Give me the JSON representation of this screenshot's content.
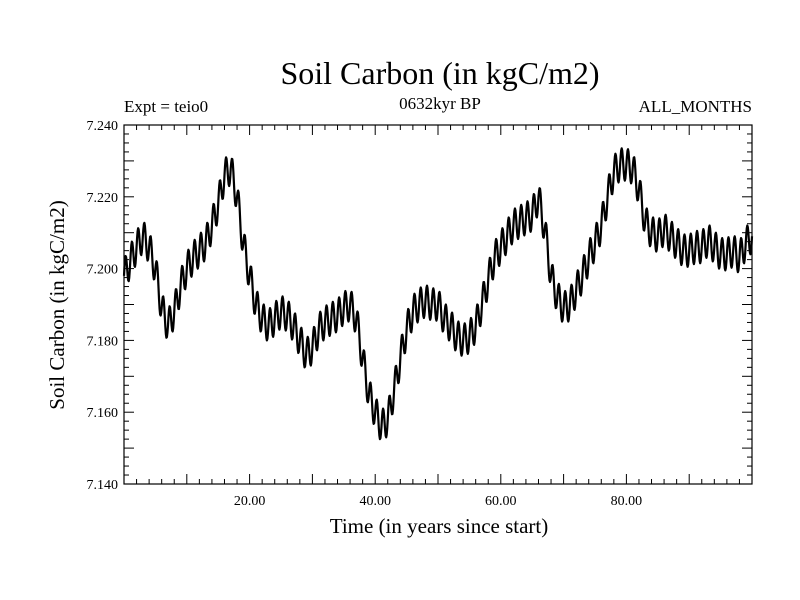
{
  "chart_data": {
    "type": "line",
    "title": "Soil Carbon (in kgC/m2)",
    "subtitle": "0632kyr BP",
    "left_label": "Expt = teio0",
    "right_label": "ALL_MONTHS",
    "xlabel": "Time (in years since start)",
    "ylabel": "Soil Carbon (in kgC/m2)",
    "xlim": [
      0,
      100
    ],
    "ylim": [
      7.14,
      7.24
    ],
    "x_ticks": [
      20,
      40,
      60,
      80
    ],
    "x_tick_labels": [
      "20.00",
      "40.00",
      "60.00",
      "80.00"
    ],
    "y_ticks": [
      7.14,
      7.16,
      7.18,
      7.2,
      7.22,
      7.24
    ],
    "y_tick_labels": [
      "7.140",
      "7.160",
      "7.180",
      "7.200",
      "7.220",
      "7.240"
    ],
    "grid": false,
    "series": [
      {
        "name": "Soil Carbon",
        "color": "#000000",
        "seasonal_amplitude": 0.0045,
        "cycle_years": 1.0,
        "trend": [
          [
            0,
            7.198
          ],
          [
            1,
            7.202
          ],
          [
            2,
            7.206
          ],
          [
            3,
            7.209
          ],
          [
            4,
            7.206
          ],
          [
            5,
            7.2
          ],
          [
            6,
            7.189
          ],
          [
            7,
            7.184
          ],
          [
            8,
            7.188
          ],
          [
            9,
            7.195
          ],
          [
            10,
            7.2
          ],
          [
            11,
            7.203
          ],
          [
            12,
            7.205
          ],
          [
            13,
            7.207
          ],
          [
            14,
            7.212
          ],
          [
            15,
            7.218
          ],
          [
            16,
            7.226
          ],
          [
            17,
            7.228
          ],
          [
            18,
            7.22
          ],
          [
            19,
            7.207
          ],
          [
            20,
            7.198
          ],
          [
            21,
            7.19
          ],
          [
            22,
            7.186
          ],
          [
            23,
            7.184
          ],
          [
            24,
            7.186
          ],
          [
            25,
            7.188
          ],
          [
            26,
            7.187
          ],
          [
            27,
            7.184
          ],
          [
            28,
            7.18
          ],
          [
            29,
            7.176
          ],
          [
            30,
            7.178
          ],
          [
            31,
            7.183
          ],
          [
            32,
            7.185
          ],
          [
            33,
            7.186
          ],
          [
            34,
            7.187
          ],
          [
            35,
            7.189
          ],
          [
            36,
            7.19
          ],
          [
            37,
            7.186
          ],
          [
            38,
            7.175
          ],
          [
            39,
            7.165
          ],
          [
            40,
            7.16
          ],
          [
            41,
            7.156
          ],
          [
            42,
            7.158
          ],
          [
            43,
            7.166
          ],
          [
            44,
            7.175
          ],
          [
            45,
            7.183
          ],
          [
            46,
            7.188
          ],
          [
            47,
            7.19
          ],
          [
            48,
            7.191
          ],
          [
            49,
            7.19
          ],
          [
            50,
            7.19
          ],
          [
            51,
            7.186
          ],
          [
            52,
            7.184
          ],
          [
            53,
            7.181
          ],
          [
            54,
            7.18
          ],
          [
            55,
            7.181
          ],
          [
            56,
            7.184
          ],
          [
            57,
            7.19
          ],
          [
            58,
            7.197
          ],
          [
            59,
            7.203
          ],
          [
            60,
            7.206
          ],
          [
            61,
            7.209
          ],
          [
            62,
            7.212
          ],
          [
            63,
            7.213
          ],
          [
            64,
            7.214
          ],
          [
            65,
            7.215
          ],
          [
            66,
            7.22
          ],
          [
            67,
            7.211
          ],
          [
            68,
            7.198
          ],
          [
            69,
            7.192
          ],
          [
            70,
            7.189
          ],
          [
            71,
            7.19
          ],
          [
            72,
            7.194
          ],
          [
            73,
            7.198
          ],
          [
            74,
            7.203
          ],
          [
            75,
            7.207
          ],
          [
            76,
            7.212
          ],
          [
            77,
            7.22
          ],
          [
            78,
            7.227
          ],
          [
            79,
            7.229
          ],
          [
            80,
            7.229
          ],
          [
            81,
            7.228
          ],
          [
            82,
            7.222
          ],
          [
            83,
            7.213
          ],
          [
            84,
            7.21
          ],
          [
            85,
            7.209
          ],
          [
            86,
            7.211
          ],
          [
            87,
            7.209
          ],
          [
            88,
            7.207
          ],
          [
            89,
            7.205
          ],
          [
            90,
            7.205
          ],
          [
            91,
            7.206
          ],
          [
            92,
            7.206
          ],
          [
            93,
            7.208
          ],
          [
            94,
            7.206
          ],
          [
            95,
            7.204
          ],
          [
            96,
            7.204
          ],
          [
            97,
            7.205
          ],
          [
            98,
            7.203
          ],
          [
            99,
            7.207
          ],
          [
            100,
            7.209
          ]
        ]
      }
    ]
  }
}
